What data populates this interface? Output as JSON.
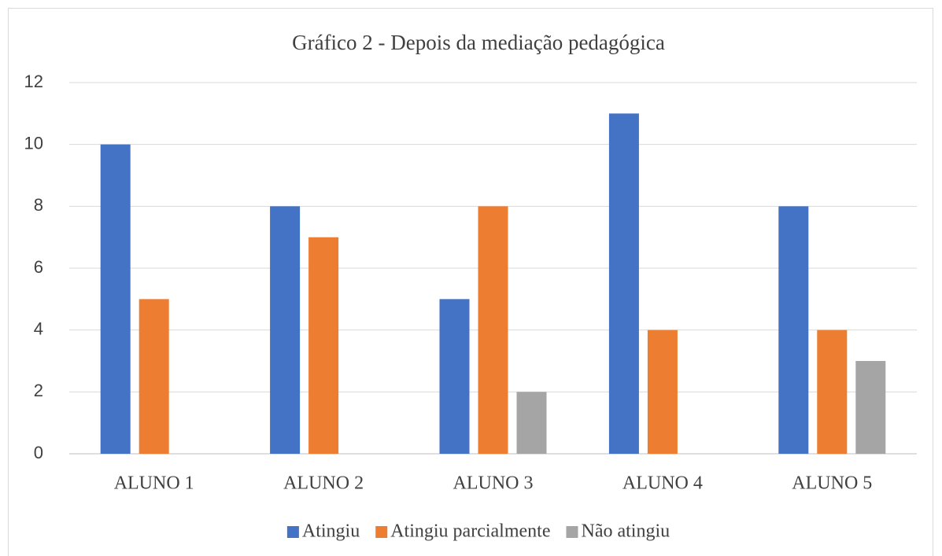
{
  "chart_data": {
    "type": "bar",
    "title": "Gráfico 2 - Depois da mediação pedagógica",
    "categories": [
      "ALUNO 1",
      "ALUNO 2",
      "ALUNO 3",
      "ALUNO 4",
      "ALUNO 5"
    ],
    "series": [
      {
        "name": "Atingiu",
        "color": "#4472c4",
        "values": [
          10,
          8,
          5,
          11,
          8
        ]
      },
      {
        "name": "Atingiu parcialmente",
        "color": "#ed7d31",
        "values": [
          5,
          7,
          8,
          4,
          4
        ]
      },
      {
        "name": "Não atingiu",
        "color": "#a5a5a5",
        "values": [
          0,
          0,
          2,
          0,
          3
        ]
      }
    ],
    "ylim": [
      0,
      12
    ],
    "yticks": [
      0,
      2,
      4,
      6,
      8,
      10,
      12
    ],
    "grid": true,
    "legend": "bottom"
  }
}
